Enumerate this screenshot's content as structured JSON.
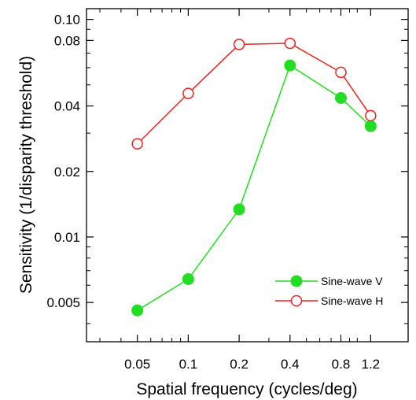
{
  "chart_data": {
    "type": "line",
    "title": "",
    "xlabel": "Spatial frequency (cycles/deg)",
    "ylabel": "Sensitivity (1/disparity threshold)",
    "x_scale": "log",
    "y_scale": "log",
    "xlim": [
      0.025,
      2.0
    ],
    "ylim": [
      0.0033,
      0.112
    ],
    "x_ticks": [
      {
        "value": 0.05,
        "label": "0.05"
      },
      {
        "value": 0.1,
        "label": "0.1"
      },
      {
        "value": 0.2,
        "label": "0.2"
      },
      {
        "value": 0.4,
        "label": "0.4"
      },
      {
        "value": 0.8,
        "label": "0.8"
      },
      {
        "value": 1.2,
        "label": "1.2"
      }
    ],
    "y_ticks": [
      {
        "value": 0.005,
        "label": "0.005"
      },
      {
        "value": 0.01,
        "label": "0.01"
      },
      {
        "value": 0.02,
        "label": "0.02"
      },
      {
        "value": 0.04,
        "label": "0.04"
      },
      {
        "value": 0.08,
        "label": "0.08"
      },
      {
        "value": 0.1,
        "label": "0.10"
      }
    ],
    "grid": false,
    "legend_position": "bottom-right",
    "series": [
      {
        "name": "Sine-wave V",
        "color": "#22dd22",
        "marker": "filled-circle",
        "x": [
          0.05,
          0.1,
          0.2,
          0.4,
          0.8,
          1.2
        ],
        "y": [
          0.0046,
          0.0064,
          0.0134,
          0.0614,
          0.0435,
          0.0323
        ]
      },
      {
        "name": "Sine-wave H",
        "color": "#ee2222",
        "marker": "open-circle",
        "x": [
          0.05,
          0.1,
          0.2,
          0.4,
          0.8,
          1.2
        ],
        "y": [
          0.0268,
          0.0457,
          0.0767,
          0.0776,
          0.0571,
          0.0361
        ]
      }
    ]
  }
}
